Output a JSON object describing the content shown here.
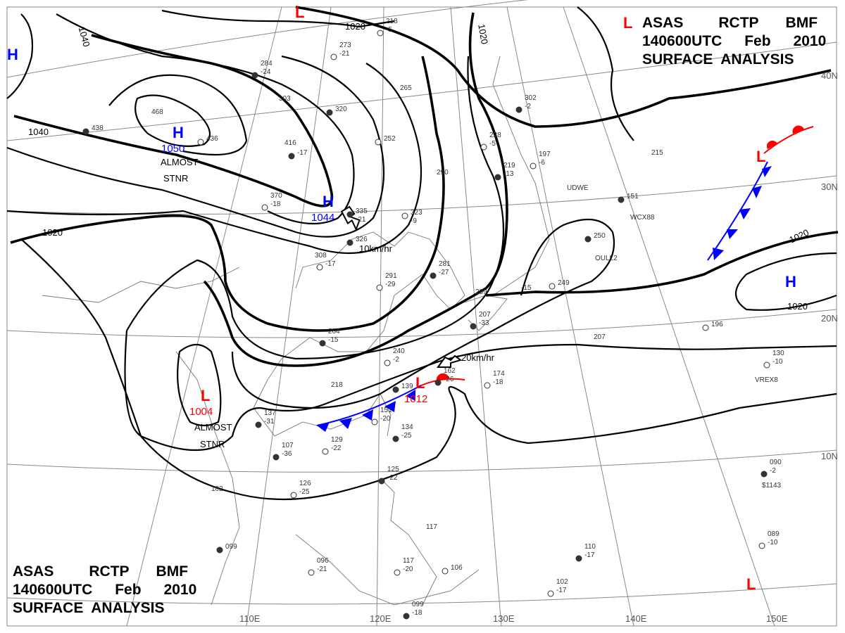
{
  "title": {
    "line1": [
      "ASAS",
      "RCTP",
      "BMF"
    ],
    "line2": [
      "140600UTC",
      "Feb",
      "2010"
    ],
    "line3": "SURFACE  ANALYSIS"
  },
  "longitude_labels": [
    "110E",
    "120E",
    "130E",
    "140E",
    "150E"
  ],
  "latitude_labels": [
    "30N",
    "20N",
    "10N",
    "40N"
  ],
  "pressure_centers": [
    {
      "type": "H",
      "value": "",
      "color": "#0000ff"
    },
    {
      "type": "H",
      "value": "1050",
      "color": "#0000ff"
    },
    {
      "type": "H",
      "value": "1044",
      "color": "#0000ff"
    },
    {
      "type": "H",
      "value": "",
      "color": "#0000ff"
    },
    {
      "type": "L",
      "value": "",
      "color": "#ff0000"
    },
    {
      "type": "L",
      "value": "",
      "color": "#ff0000"
    },
    {
      "type": "L",
      "value": "",
      "color": "#ff0000"
    },
    {
      "type": "L",
      "value": "1004",
      "color": "#ff0000"
    },
    {
      "type": "L",
      "value": "1012",
      "color": "#ff0000"
    },
    {
      "type": "L",
      "value": "",
      "color": "#ff0000"
    }
  ],
  "annotations": {
    "stnr_1": [
      "ALMOST",
      "STNR"
    ],
    "stnr_2": [
      "ALMOST",
      "STNR"
    ],
    "motion_1": "10km/hr",
    "motion_2": "20km/hr"
  },
  "isobar_labels": [
    "1020",
    "1020",
    "1020",
    "1020",
    "1020",
    "1040",
    "1040"
  ],
  "station_ids": [
    "UDWE",
    "OULL2",
    "WCX88",
    "VREX8",
    "$1143"
  ],
  "station_values": [
    "335",
    "-21",
    "323",
    "-9",
    "326",
    "308",
    "-17",
    "281",
    "-27",
    "291",
    "-29",
    "264",
    "-15",
    "240",
    "-2",
    "218",
    "139",
    "151",
    "-20",
    "134",
    "-25",
    "129",
    "-22",
    "107",
    "-36",
    "126",
    "-25",
    "102",
    "099",
    "096",
    "-21",
    "125",
    "-22",
    "117",
    "106",
    "162",
    "-26",
    "174",
    "-18",
    "207",
    "-33",
    "239",
    "249",
    "-15",
    "250",
    "207",
    "196",
    "215",
    "151",
    "228",
    "-5",
    "219",
    "-13",
    "197",
    "-6",
    "302",
    "-2",
    "265",
    "252",
    "290",
    "320",
    "303",
    "436",
    "416",
    "-17",
    "370",
    "-18",
    "468",
    "438",
    "273",
    "-21",
    "284",
    "-24",
    "218",
    "-5",
    "137",
    "-31",
    "130",
    "-10",
    "090",
    "-2",
    "089",
    "-10",
    "110",
    "-17",
    "102",
    "-17",
    "099",
    "-18",
    "117",
    "-20"
  ],
  "colors": {
    "high": "#0000ff",
    "low": "#ff0000",
    "cold_front": "#0000ff",
    "warm_front": "#ff0000",
    "isobar": "#000000"
  }
}
